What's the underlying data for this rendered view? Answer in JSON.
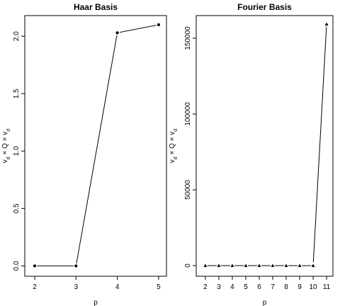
{
  "chart_data": [
    {
      "type": "line",
      "title": "Haar Basis",
      "xlabel": "p",
      "ylabel": [
        "v",
        "d",
        " × Q × v",
        "d"
      ],
      "x": [
        2,
        3,
        4,
        5
      ],
      "values": [
        0.0,
        0.0,
        2.03,
        2.1
      ],
      "marker": "circle",
      "color": "#000000",
      "xlim": [
        1.76,
        5.19
      ],
      "ylim": [
        -0.09,
        2.18
      ],
      "xticks": [
        2,
        3,
        4,
        5
      ],
      "yticks": [
        {
          "value": 0,
          "label": "0.0"
        },
        0.5,
        {
          "value": 1,
          "label": "1.0"
        },
        1.5,
        {
          "value": 2,
          "label": "2.0"
        }
      ]
    },
    {
      "type": "line",
      "title": "Fourier Basis",
      "xlabel": "p",
      "ylabel": [
        "v",
        "d",
        " × Q × v",
        "d"
      ],
      "x": [
        2,
        3,
        4,
        5,
        6,
        7,
        8,
        9,
        10,
        11
      ],
      "values": [
        0,
        0,
        0,
        0,
        0,
        0,
        0,
        0,
        0,
        159300
      ],
      "marker": "triangle",
      "color": "#000000",
      "xlim": [
        1.32,
        11.47
      ],
      "ylim": [
        -7010,
        164950
      ],
      "xticks": [
        2,
        3,
        4,
        5,
        6,
        7,
        8,
        9,
        10,
        11
      ],
      "yticks": [
        0,
        50000,
        100000,
        150000
      ]
    }
  ]
}
